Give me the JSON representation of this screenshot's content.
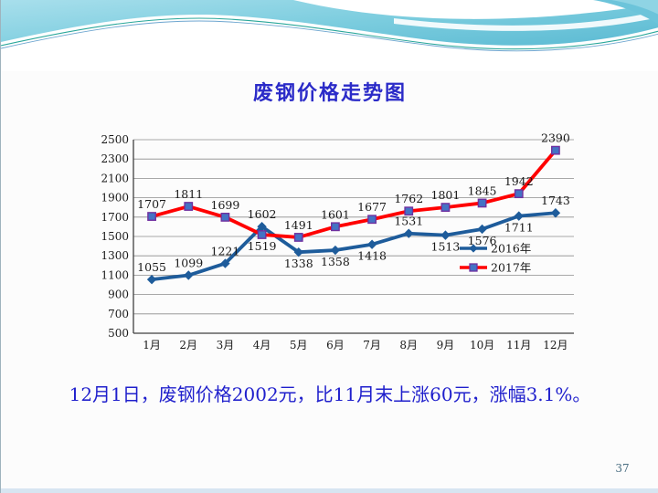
{
  "slide": {
    "title": "废钢价格走势图",
    "caption": "12月1日，废钢价格2002元，比11月末上涨60元，涨幅3.1%。",
    "page_number": "37"
  },
  "colors": {
    "title_text": "#2b2bc8",
    "caption_text": "#1f1fcc",
    "page_number_text": "#4a6e82",
    "grid_line": "#8c8c8c",
    "axis_line": "#404040",
    "series_2016": "#1e5c9b",
    "series_2017": "#ff0000",
    "marker_2017_fill": "#4472c4",
    "marker_2017_stroke": "#7030a0",
    "header_gradient_top": "#a6deec",
    "header_gradient_bottom": "#4fb3ce",
    "footer_bar": "#d7e5f1"
  },
  "chart_data": {
    "type": "line",
    "title": "",
    "xlabel": "",
    "ylabel": "",
    "categories": [
      "1月",
      "2月",
      "3月",
      "4月",
      "5月",
      "6月",
      "7月",
      "8月",
      "9月",
      "10月",
      "11月",
      "12月"
    ],
    "series": [
      {
        "name": "2016年",
        "color": "#1e5c9b",
        "marker": "diamond",
        "values": [
          1055,
          1099,
          1221,
          1602,
          1338,
          1358,
          1418,
          1531,
          1513,
          1576,
          1711,
          1743
        ]
      },
      {
        "name": "2017年",
        "color": "#ff0000",
        "marker": "square",
        "marker_fill": "#4472c4",
        "marker_stroke": "#7030a0",
        "values": [
          1707,
          1811,
          1699,
          1519,
          1491,
          1601,
          1677,
          1762,
          1801,
          1845,
          1942,
          2390
        ]
      }
    ],
    "ylim": [
      500,
      2500
    ],
    "ytick_step": 200,
    "grid": true,
    "legend_position": "inside-right",
    "data_labels": true
  }
}
